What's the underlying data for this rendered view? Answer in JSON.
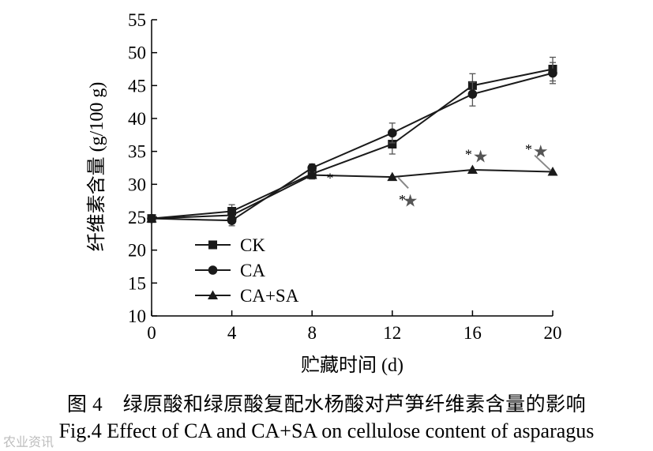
{
  "chart_data": {
    "type": "line",
    "xlabel": "贮藏时间 (d)",
    "ylabel": "纤维素含量 (g/100 g)",
    "xlim": [
      0,
      20
    ],
    "ylim": [
      10,
      55
    ],
    "x_ticks": [
      "0",
      "4",
      "8",
      "12",
      "16",
      "20"
    ],
    "y_ticks": [
      "10",
      "15",
      "20",
      "25",
      "30",
      "35",
      "40",
      "45",
      "50",
      "55"
    ],
    "grid": false,
    "legend_position": "bottom-left",
    "x": [
      0,
      4,
      8,
      12,
      16,
      20
    ],
    "series": [
      {
        "name": "CK",
        "marker": "square",
        "values": [
          24.8,
          25.9,
          31.6,
          36.1,
          45.0,
          47.5
        ],
        "errors": [
          0,
          1.0,
          0.8,
          1.5,
          1.8,
          1.8
        ]
      },
      {
        "name": "CA",
        "marker": "circle",
        "values": [
          24.8,
          24.5,
          32.5,
          37.8,
          43.7,
          46.9
        ],
        "errors": [
          0,
          0.8,
          0.6,
          1.5,
          1.8,
          1.6
        ]
      },
      {
        "name": "CA+SA",
        "marker": "triangle",
        "values": [
          24.8,
          25.3,
          31.4,
          31.1,
          32.2,
          31.9
        ],
        "errors": [
          0,
          0,
          0,
          0,
          0,
          0
        ]
      }
    ],
    "annotations": [
      {
        "text": "*",
        "x": 8.9,
        "y": 31.4
      },
      {
        "text": "*",
        "x": 12.5,
        "y": 28.1
      },
      {
        "text": "★",
        "x": 12.9,
        "y": 27.6
      },
      {
        "text": "*",
        "x": 15.8,
        "y": 35.0
      },
      {
        "text": "★",
        "x": 16.4,
        "y": 34.3
      },
      {
        "text": "*",
        "x": 18.8,
        "y": 35.8
      },
      {
        "text": "★",
        "x": 19.4,
        "y": 35.1
      }
    ]
  },
  "caption": {
    "chinese": "图 4　绿原酸和绿原酸复配水杨酸对芦笋纤维素含量的影响",
    "english": "Fig.4    Effect of CA and CA+SA on cellulose content of asparagus"
  },
  "watermark": "农业资讯"
}
